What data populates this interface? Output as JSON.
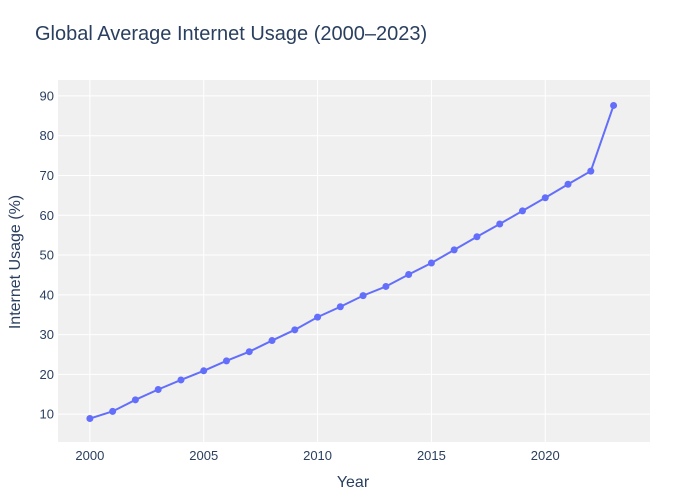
{
  "chart_data": {
    "type": "line",
    "title": "Global Average Internet Usage (2000–2023)",
    "xlabel": "Year",
    "ylabel": "Internet Usage (%)",
    "xlim": [
      1998.6,
      2024.6
    ],
    "ylim": [
      3,
      94
    ],
    "xticks": [
      2000,
      2005,
      2010,
      2015,
      2020
    ],
    "yticks": [
      10,
      20,
      30,
      40,
      50,
      60,
      70,
      80,
      90
    ],
    "grid": true,
    "legend": "none",
    "plot_bgcolor": "#f0f0f0",
    "line_color": "#636efa",
    "x": [
      2000,
      2001,
      2002,
      2003,
      2004,
      2005,
      2006,
      2007,
      2008,
      2009,
      2010,
      2011,
      2012,
      2013,
      2014,
      2015,
      2016,
      2017,
      2018,
      2019,
      2020,
      2021,
      2022,
      2023
    ],
    "y": [
      8.9,
      10.7,
      13.6,
      16.2,
      18.6,
      20.9,
      23.4,
      25.7,
      28.5,
      31.2,
      34.4,
      37.0,
      39.8,
      42.1,
      45.1,
      48.0,
      51.3,
      54.6,
      57.8,
      61.1,
      64.4,
      67.8,
      71.1,
      87.6
    ]
  }
}
